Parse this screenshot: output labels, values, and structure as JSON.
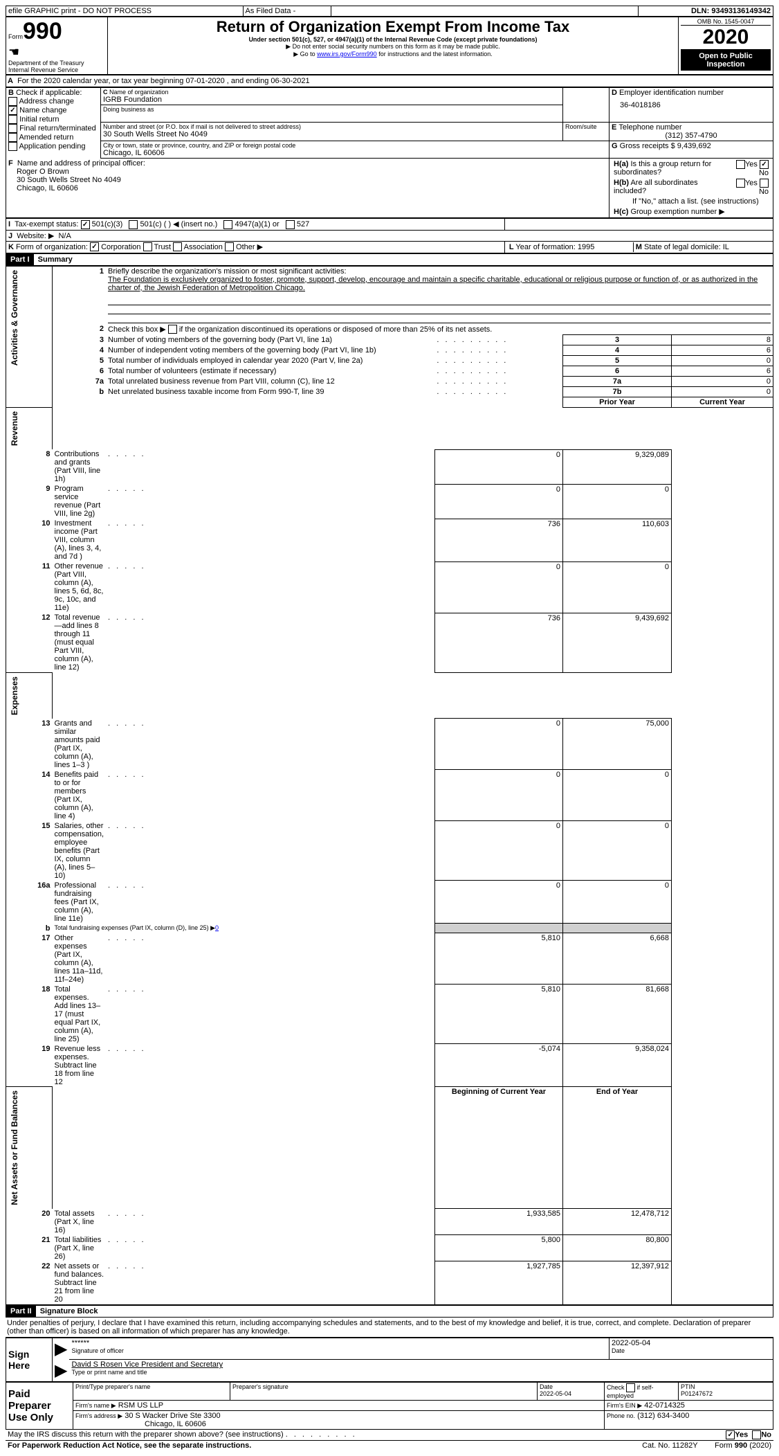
{
  "topbar": {
    "efile": "efile GRAPHIC print - DO NOT PROCESS",
    "asfiled": "As Filed Data -",
    "dln": "DLN: 93493136149342"
  },
  "header": {
    "form_num": "990",
    "form_word": "Form",
    "title": "Return of Organization Exempt From Income Tax",
    "sub1": "Under section 501(c), 527, or 4947(a)(1) of the Internal Revenue Code (except private foundations)",
    "sub2": "▶ Do not enter social security numbers on this form as it may be made public.",
    "sub3": "▶ Go to ",
    "link": "www.irs.gov/Form990",
    "sub3b": " for instructions and the latest information.",
    "dept": "Department of the Treasury",
    "irs": "Internal Revenue Service",
    "omb": "OMB No. 1545-0047",
    "year": "2020",
    "open": "Open to Public Inspection"
  },
  "A": {
    "line": "For the 2020 calendar year, or tax year beginning 07-01-2020 , and ending 06-30-2021"
  },
  "B": {
    "label": "Check if applicable:",
    "addr": "Address change",
    "name": "Name change",
    "init": "Initial return",
    "final": "Final return/terminated",
    "amend": "Amended return",
    "app": "Application pending"
  },
  "C": {
    "label": "Name of organization",
    "org": "IGRB Foundation",
    "dba": "Doing business as",
    "street_label": "Number and street (or P.O. box if mail is not delivered to street address)",
    "street": "30 South Wells Street No 4049",
    "room": "Room/suite",
    "city_label": "City or town, state or province, country, and ZIP or foreign postal code",
    "city": "Chicago, IL  60606"
  },
  "D": {
    "label": "Employer identification number",
    "ein": "36-4018186"
  },
  "E": {
    "label": "Telephone number",
    "phone": "(312) 357-4790"
  },
  "F": {
    "label": "Name and address of principal officer:",
    "n1": "Roger O Brown",
    "n2": "30 South Wells Street No 4049",
    "n3": "Chicago, IL  60606"
  },
  "G": {
    "label": "Gross receipts $",
    "val": "9,439,692"
  },
  "H": {
    "a": "Is this a group return for subordinates?",
    "b": "Are all subordinates included?",
    "ifno": "If \"No,\" attach a list. (see instructions)",
    "c": "Group exemption number ▶",
    "yes": "Yes",
    "no": "No"
  },
  "I": {
    "label": "Tax-exempt status:",
    "a": "501(c)(3)",
    "b": "501(c) (   ) ◀ (insert no.)",
    "c": "4947(a)(1) or",
    "d": "527"
  },
  "J": {
    "label": "Website: ▶",
    "val": "N/A"
  },
  "K": {
    "label": "Form of organization:",
    "corp": "Corporation",
    "trust": "Trust",
    "assoc": "Association",
    "other": "Other ▶"
  },
  "L": {
    "label": "Year of formation:",
    "val": "1995"
  },
  "M": {
    "label": "State of legal domicile:",
    "val": "IL"
  },
  "part1": {
    "label": "Part I",
    "title": "Summary"
  },
  "line1": {
    "label": "Briefly describe the organization's mission or most significant activities:",
    "text": "The Foundation is exclusively organized to foster, promote, support, develop, encourage and maintain a specific charitable, educational or religious purpose or function of, or as authorized in the charter of, the Jewish Federation of Metropolition Chicago."
  },
  "line2": "Check this box ▶",
  "line2b": " if the organization discontinued its operations or disposed of more than 25% of its net assets.",
  "lines": {
    "3": {
      "t": "Number of voting members of the governing body (Part VI, line 1a)",
      "v": "8"
    },
    "4": {
      "t": "Number of independent voting members of the governing body (Part VI, line 1b)",
      "v": "6"
    },
    "5": {
      "t": "Total number of individuals employed in calendar year 2020 (Part V, line 2a)",
      "v": "0"
    },
    "6": {
      "t": "Total number of volunteers (estimate if necessary)",
      "v": "6"
    },
    "7a": {
      "t": "Total unrelated business revenue from Part VIII, column (C), line 12",
      "v": "0"
    },
    "7b": {
      "t": "Net unrelated business taxable income from Form 990-T, line 39",
      "v": "0"
    }
  },
  "colhdr": {
    "prior": "Prior Year",
    "current": "Current Year"
  },
  "rev": [
    {
      "n": "8",
      "t": "Contributions and grants (Part VIII, line 1h)",
      "p": "0",
      "c": "9,329,089"
    },
    {
      "n": "9",
      "t": "Program service revenue (Part VIII, line 2g)",
      "p": "0",
      "c": "0"
    },
    {
      "n": "10",
      "t": "Investment income (Part VIII, column (A), lines 3, 4, and 7d )",
      "p": "736",
      "c": "110,603"
    },
    {
      "n": "11",
      "t": "Other revenue (Part VIII, column (A), lines 5, 6d, 8c, 9c, 10c, and 11e)",
      "p": "0",
      "c": "0"
    },
    {
      "n": "12",
      "t": "Total revenue—add lines 8 through 11 (must equal Part VIII, column (A), line 12)",
      "p": "736",
      "c": "9,439,692"
    }
  ],
  "exp": [
    {
      "n": "13",
      "t": "Grants and similar amounts paid (Part IX, column (A), lines 1–3 )",
      "p": "0",
      "c": "75,000"
    },
    {
      "n": "14",
      "t": "Benefits paid to or for members (Part IX, column (A), line 4)",
      "p": "0",
      "c": "0"
    },
    {
      "n": "15",
      "t": "Salaries, other compensation, employee benefits (Part IX, column (A), lines 5–10)",
      "p": "0",
      "c": "0"
    },
    {
      "n": "16a",
      "t": "Professional fundraising fees (Part IX, column (A), line 11e)",
      "p": "0",
      "c": "0"
    },
    {
      "n": "b",
      "t": "Total fundraising expenses (Part IX, column (D), line 25) ▶",
      "link": "0",
      "p": "",
      "c": ""
    },
    {
      "n": "17",
      "t": "Other expenses (Part IX, column (A), lines 11a–11d, 11f–24e)",
      "p": "5,810",
      "c": "6,668"
    },
    {
      "n": "18",
      "t": "Total expenses. Add lines 13–17 (must equal Part IX, column (A), line 25)",
      "p": "5,810",
      "c": "81,668"
    },
    {
      "n": "19",
      "t": "Revenue less expenses. Subtract line 18 from line 12",
      "p": "-5,074",
      "c": "9,358,024"
    }
  ],
  "nethdr": {
    "b": "Beginning of Current Year",
    "e": "End of Year"
  },
  "net": [
    {
      "n": "20",
      "t": "Total assets (Part X, line 16)",
      "p": "1,933,585",
      "c": "12,478,712"
    },
    {
      "n": "21",
      "t": "Total liabilities (Part X, line 26)",
      "p": "5,800",
      "c": "80,800"
    },
    {
      "n": "22",
      "t": "Net assets or fund balances. Subtract line 21 from line 20",
      "p": "1,927,785",
      "c": "12,397,912"
    }
  ],
  "vt": {
    "ag": "Activities & Governance",
    "rev": "Revenue",
    "exp": "Expenses",
    "net": "Net Assets or Fund Balances"
  },
  "part2": {
    "label": "Part II",
    "title": "Signature Block",
    "text": "Under penalties of perjury, I declare that I have examined this return, including accompanying schedules and statements, and to the best of my knowledge and belief, it is true, correct, and complete. Declaration of preparer (other than officer) is based on all information of which preparer has any knowledge."
  },
  "sign": {
    "here": "Sign Here",
    "stars": "******",
    "sigoff": "Signature of officer",
    "date": "2022-05-04",
    "date_l": "Date",
    "officer": "David S Rosen  Vice President and Secretary",
    "type": "Type or print name and title"
  },
  "prep": {
    "label": "Paid Preparer Use Only",
    "pname": "Print/Type preparer's name",
    "psig": "Preparer's signature",
    "pdate_l": "Date",
    "pdate": "2022-05-04",
    "chk": "Check",
    "if": "if self-employed",
    "ptin_l": "PTIN",
    "ptin": "P01247672",
    "firm_l": "Firm's name  ▶",
    "firm": "RSM US LLP",
    "fein_l": "Firm's EIN ▶",
    "fein": "42-0714325",
    "faddr_l": "Firm's address ▶",
    "faddr": "30 S Wacker Drive Ste 3300",
    "fcity": "Chicago, IL  60606",
    "phone_l": "Phone no.",
    "phone": "(312) 634-3400"
  },
  "footer": {
    "discuss": "May the IRS discuss this return with the preparer shown above? (see instructions)",
    "yes": "Yes",
    "no": "No",
    "pra": "For Paperwork Reduction Act Notice, see the separate instructions.",
    "cat": "Cat. No. 11282Y",
    "form": "Form",
    "fn": "990",
    "yr": "(2020)"
  }
}
